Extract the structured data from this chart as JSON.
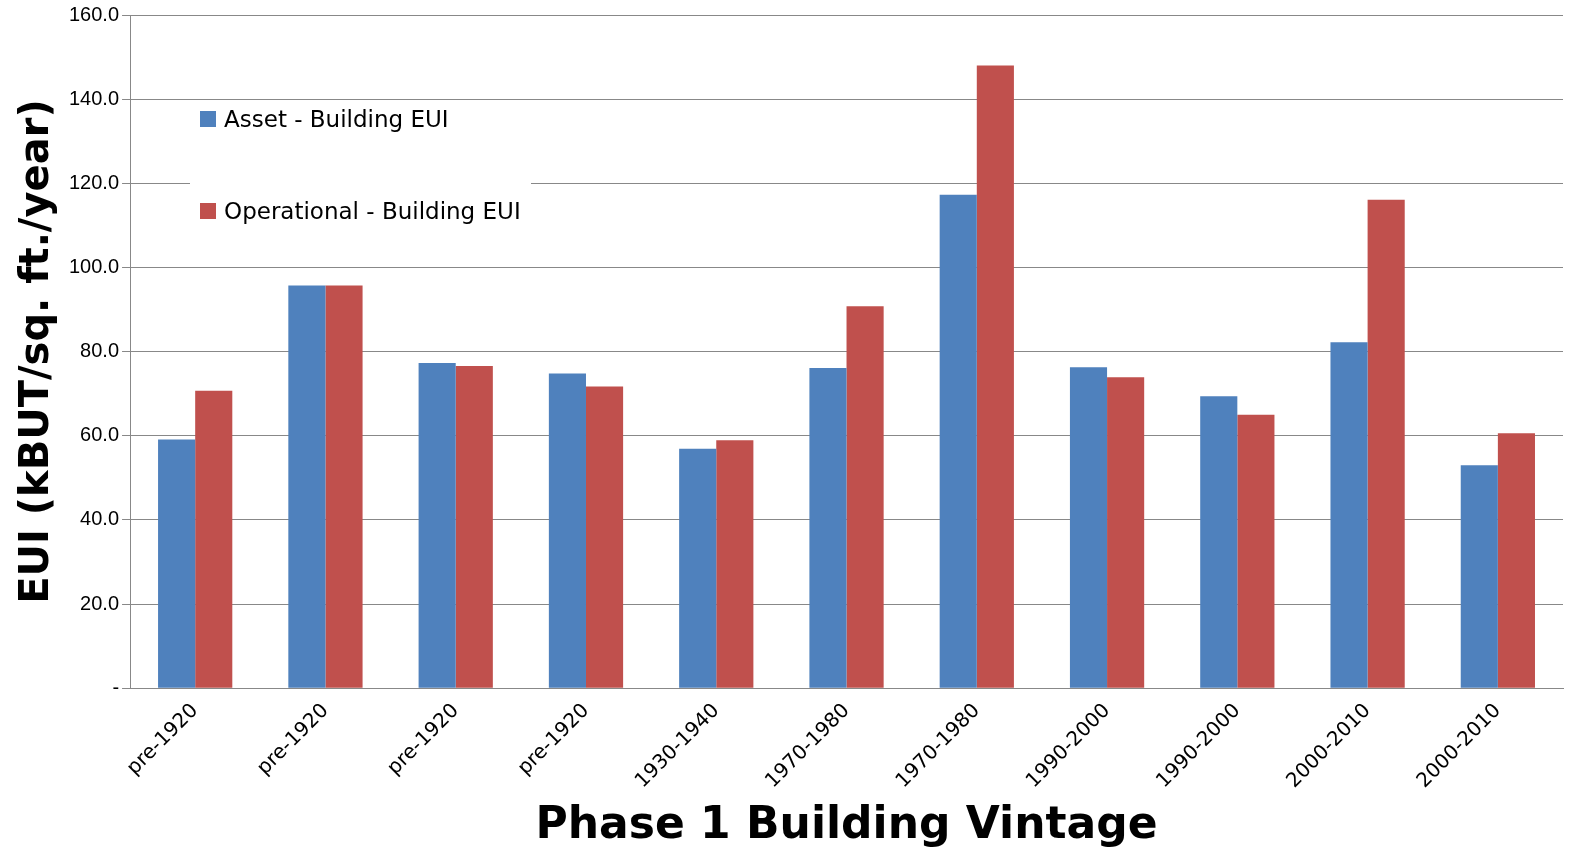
{
  "chart_data": {
    "type": "bar",
    "xlabel": "Phase 1 Building Vintage",
    "ylabel": "EUI (kBUT/sq. ft./year)",
    "categories": [
      "pre-1920",
      "pre-1920",
      "pre-1920",
      "pre-1920",
      "1930-1940",
      "1970-1980",
      "1970-1980",
      "1990-2000",
      "1990-2000",
      "2000-2010",
      "2000-2010"
    ],
    "series": [
      {
        "name": "Asset - Building EUI",
        "color": "#4f81bd",
        "values": [
          59.1,
          95.7,
          77.3,
          74.8,
          56.9,
          76.1,
          117.3,
          76.3,
          69.4,
          82.2,
          53.0
        ]
      },
      {
        "name": "Operational - Building EUI",
        "color": "#c0504d",
        "values": [
          70.7,
          95.7,
          76.6,
          71.7,
          58.9,
          90.8,
          148.0,
          73.9,
          65.0,
          116.1,
          60.6
        ]
      }
    ],
    "ylim": [
      0,
      160
    ],
    "yticks": [
      {
        "value": 0,
        "label": "-"
      },
      {
        "value": 20,
        "label": "20.0"
      },
      {
        "value": 40,
        "label": "40.0"
      },
      {
        "value": 60,
        "label": "60.0"
      },
      {
        "value": 80,
        "label": "80.0"
      },
      {
        "value": 100,
        "label": "100.0"
      },
      {
        "value": 120,
        "label": "120.0"
      },
      {
        "value": 140,
        "label": "140.0"
      },
      {
        "value": 160,
        "label": "160.0"
      }
    ],
    "grid": "y",
    "legend": "top left"
  }
}
